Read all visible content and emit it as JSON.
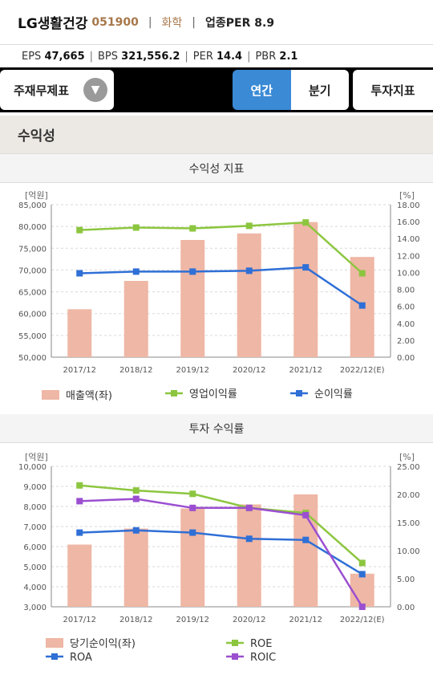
{
  "header": {
    "company_name": "LG생활건강",
    "code": "051900",
    "sector": "화학",
    "sector_per": "업종PER 8.9"
  },
  "metrics": {
    "eps_label": "EPS",
    "eps_value": "47,665",
    "bps_label": "BPS",
    "bps_value": "321,556.2",
    "per_label": "PER",
    "per_value": "14.4",
    "pbr_label": "PBR",
    "pbr_value": "2.1"
  },
  "nav": {
    "select_label": "주재무제표",
    "tab_annual": "연간",
    "tab_quarter": "분기",
    "invest_label": "투자지표"
  },
  "section": {
    "title": "수익성"
  },
  "colors": {
    "bar": "#efb7a5",
    "green": "#8cc63f",
    "blue": "#2f6fd6",
    "purple": "#9b4fd0",
    "accent": "#3a8ad6"
  },
  "chart_data": [
    {
      "type": "bar",
      "title": "수익성 지표",
      "categories": [
        "2017/12",
        "2018/12",
        "2019/12",
        "2020/12",
        "2021/12",
        "2022/12(E)"
      ],
      "left_unit": "[억원]",
      "right_unit": "[%]",
      "left_ylim": [
        50000,
        85000
      ],
      "left_ticks": [
        "50,000",
        "55,000",
        "60,000",
        "65,000",
        "70,000",
        "75,000",
        "80,000",
        "85,000"
      ],
      "right_ylim": [
        0,
        18
      ],
      "right_ticks": [
        "0.00",
        "2.00",
        "4.00",
        "6.00",
        "8.00",
        "10.00",
        "12.00",
        "14.00",
        "16.00",
        "18.00"
      ],
      "series": [
        {
          "name": "매출액(좌)",
          "kind": "bar",
          "axis": "left",
          "color": "#efb7a5",
          "values": [
            61000,
            67500,
            76900,
            78400,
            81000,
            73000
          ]
        },
        {
          "name": "영업이익률",
          "kind": "line",
          "axis": "right",
          "color": "#8cc63f",
          "values": [
            15.0,
            15.3,
            15.2,
            15.5,
            15.9,
            9.9
          ]
        },
        {
          "name": "순이익률",
          "kind": "line",
          "axis": "right",
          "color": "#2f6fd6",
          "values": [
            9.9,
            10.1,
            10.1,
            10.2,
            10.6,
            6.1
          ]
        }
      ]
    },
    {
      "type": "bar",
      "title": "투자 수익률",
      "categories": [
        "2017/12",
        "2018/12",
        "2019/12",
        "2020/12",
        "2021/12",
        "2022/12(E)"
      ],
      "left_unit": "[억원]",
      "right_unit": "[%]",
      "left_ylim": [
        3000,
        10000
      ],
      "left_ticks": [
        "3,000",
        "4,000",
        "5,000",
        "6,000",
        "7,000",
        "8,000",
        "9,000",
        "10,000"
      ],
      "right_ylim": [
        0,
        25
      ],
      "right_ticks": [
        "0.00",
        "5.00",
        "10.00",
        "15.00",
        "20.00",
        "25.00"
      ],
      "series": [
        {
          "name": "당기순이익(좌)",
          "kind": "bar",
          "axis": "left",
          "color": "#efb7a5",
          "values": [
            6100,
            6900,
            7900,
            8100,
            8600,
            4650
          ]
        },
        {
          "name": "ROE",
          "kind": "line",
          "axis": "right",
          "color": "#8cc63f",
          "values": [
            21.6,
            20.7,
            20.1,
            17.6,
            16.7,
            7.8
          ]
        },
        {
          "name": "ROA",
          "kind": "line",
          "axis": "right",
          "color": "#2f6fd6",
          "values": [
            13.2,
            13.6,
            13.2,
            12.1,
            11.9,
            5.8
          ]
        },
        {
          "name": "ROIC",
          "kind": "line",
          "axis": "right",
          "color": "#9b4fd0",
          "values": [
            18.8,
            19.2,
            17.6,
            17.6,
            16.3,
            0.0
          ]
        }
      ]
    }
  ]
}
